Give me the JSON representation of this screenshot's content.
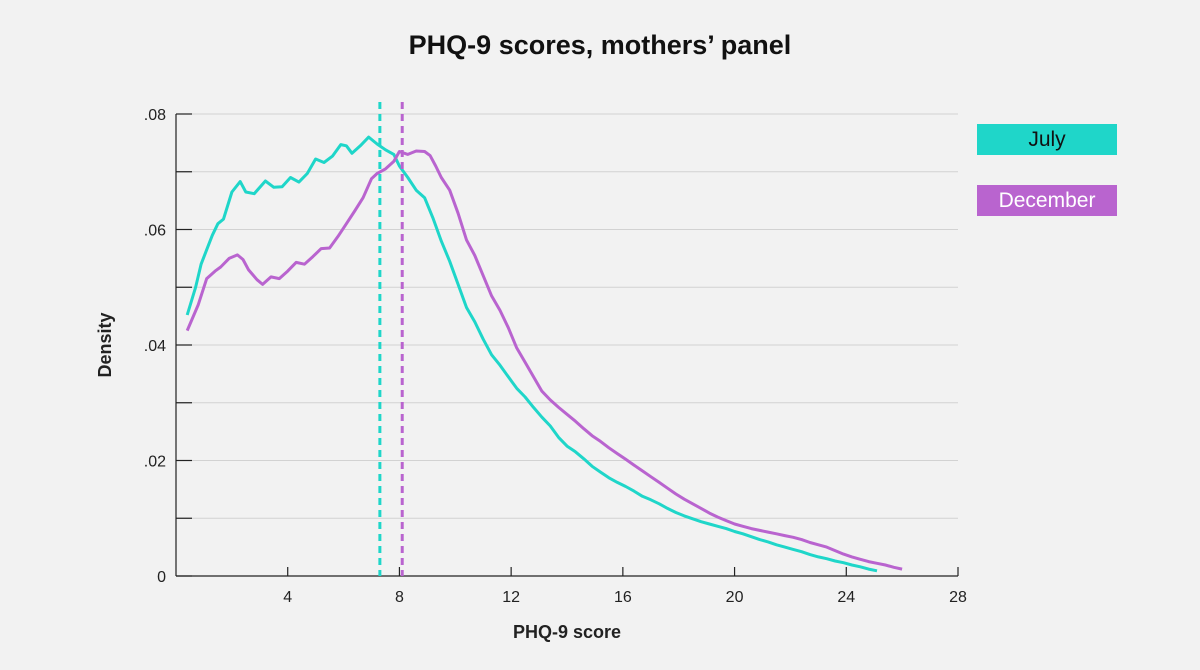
{
  "chart_data": {
    "type": "line",
    "title": "PHQ-9 scores, mothers’ panel",
    "xlabel": "PHQ-9 score",
    "ylabel": "Density",
    "xlim": [
      0,
      28
    ],
    "ylim": [
      0,
      0.08
    ],
    "x_ticks": [
      4,
      8,
      12,
      16,
      20,
      24,
      28
    ],
    "x_tick_labels": [
      "4",
      "8",
      "12",
      "16",
      "20",
      "24",
      "28"
    ],
    "y_ticks": [
      0,
      0.01,
      0.02,
      0.03,
      0.04,
      0.05,
      0.06,
      0.07,
      0.08
    ],
    "y_tick_labels": [
      "0",
      "",
      ".02",
      "",
      ".04",
      "",
      ".06",
      "",
      ".08"
    ],
    "grid": true,
    "legend_position": "right",
    "series": [
      {
        "name": "July",
        "color": "#1fd6c9",
        "mean": 7.3,
        "points": [
          [
            0.4,
            0.0452
          ],
          [
            0.7,
            0.05
          ],
          [
            0.9,
            0.054
          ],
          [
            1.1,
            0.0565
          ],
          [
            1.3,
            0.059
          ],
          [
            1.5,
            0.061
          ],
          [
            1.7,
            0.0618
          ],
          [
            2.0,
            0.0665
          ],
          [
            2.3,
            0.0683
          ],
          [
            2.5,
            0.0665
          ],
          [
            2.8,
            0.0662
          ],
          [
            3.2,
            0.0684
          ],
          [
            3.5,
            0.0673
          ],
          [
            3.8,
            0.0674
          ],
          [
            4.1,
            0.069
          ],
          [
            4.4,
            0.0682
          ],
          [
            4.7,
            0.0697
          ],
          [
            5.0,
            0.0722
          ],
          [
            5.3,
            0.0716
          ],
          [
            5.6,
            0.0727
          ],
          [
            5.9,
            0.0747
          ],
          [
            6.1,
            0.0745
          ],
          [
            6.3,
            0.0732
          ],
          [
            6.6,
            0.0745
          ],
          [
            6.9,
            0.076
          ],
          [
            7.2,
            0.0748
          ],
          [
            7.5,
            0.0738
          ],
          [
            7.8,
            0.073
          ],
          [
            8.0,
            0.071
          ],
          [
            8.3,
            0.069
          ],
          [
            8.6,
            0.0668
          ],
          [
            8.9,
            0.0655
          ],
          [
            9.2,
            0.062
          ],
          [
            9.5,
            0.058
          ],
          [
            9.8,
            0.0545
          ],
          [
            10.1,
            0.0505
          ],
          [
            10.4,
            0.0465
          ],
          [
            10.7,
            0.044
          ],
          [
            11.0,
            0.041
          ],
          [
            11.3,
            0.0383
          ],
          [
            11.6,
            0.0365
          ],
          [
            11.9,
            0.0345
          ],
          [
            12.2,
            0.0325
          ],
          [
            12.5,
            0.031
          ],
          [
            12.8,
            0.0292
          ],
          [
            13.1,
            0.0275
          ],
          [
            13.4,
            0.026
          ],
          [
            13.7,
            0.024
          ],
          [
            14.0,
            0.0225
          ],
          [
            14.3,
            0.0215
          ],
          [
            14.6,
            0.0203
          ],
          [
            14.9,
            0.019
          ],
          [
            15.2,
            0.018
          ],
          [
            15.5,
            0.017
          ],
          [
            15.8,
            0.0162
          ],
          [
            16.1,
            0.0155
          ],
          [
            16.4,
            0.0147
          ],
          [
            16.7,
            0.0138
          ],
          [
            17.0,
            0.0132
          ],
          [
            17.3,
            0.0125
          ],
          [
            17.6,
            0.0117
          ],
          [
            17.9,
            0.011
          ],
          [
            18.2,
            0.0104
          ],
          [
            18.5,
            0.0099
          ],
          [
            18.8,
            0.0094
          ],
          [
            19.1,
            0.009
          ],
          [
            19.4,
            0.0086
          ],
          [
            19.7,
            0.0082
          ],
          [
            20.0,
            0.0077
          ],
          [
            20.3,
            0.0073
          ],
          [
            20.6,
            0.0068
          ],
          [
            20.9,
            0.0063
          ],
          [
            21.2,
            0.0059
          ],
          [
            21.5,
            0.0054
          ],
          [
            21.8,
            0.005
          ],
          [
            22.1,
            0.0046
          ],
          [
            22.4,
            0.0042
          ],
          [
            22.7,
            0.0037
          ],
          [
            23.0,
            0.0033
          ],
          [
            23.3,
            0.003
          ],
          [
            23.6,
            0.0026
          ],
          [
            23.9,
            0.0023
          ],
          [
            24.2,
            0.0019
          ],
          [
            24.5,
            0.0016
          ],
          [
            24.8,
            0.0012
          ],
          [
            25.1,
            0.0009
          ]
        ]
      },
      {
        "name": "December",
        "color": "#b964cf",
        "mean": 8.1,
        "points": [
          [
            0.4,
            0.0425
          ],
          [
            0.8,
            0.047
          ],
          [
            1.1,
            0.0515
          ],
          [
            1.4,
            0.0528
          ],
          [
            1.6,
            0.0535
          ],
          [
            1.9,
            0.055
          ],
          [
            2.2,
            0.0556
          ],
          [
            2.4,
            0.0548
          ],
          [
            2.6,
            0.053
          ],
          [
            2.9,
            0.0513
          ],
          [
            3.1,
            0.0505
          ],
          [
            3.4,
            0.0518
          ],
          [
            3.7,
            0.0515
          ],
          [
            4.0,
            0.0528
          ],
          [
            4.3,
            0.0543
          ],
          [
            4.6,
            0.054
          ],
          [
            4.9,
            0.0553
          ],
          [
            5.2,
            0.0567
          ],
          [
            5.5,
            0.0568
          ],
          [
            5.8,
            0.0588
          ],
          [
            6.1,
            0.061
          ],
          [
            6.4,
            0.0632
          ],
          [
            6.7,
            0.0655
          ],
          [
            7.0,
            0.0688
          ],
          [
            7.2,
            0.0697
          ],
          [
            7.5,
            0.0705
          ],
          [
            7.8,
            0.0718
          ],
          [
            8.0,
            0.0735
          ],
          [
            8.3,
            0.073
          ],
          [
            8.6,
            0.0736
          ],
          [
            8.9,
            0.0735
          ],
          [
            9.1,
            0.0728
          ],
          [
            9.3,
            0.071
          ],
          [
            9.5,
            0.069
          ],
          [
            9.8,
            0.0668
          ],
          [
            10.1,
            0.0628
          ],
          [
            10.4,
            0.0582
          ],
          [
            10.7,
            0.0555
          ],
          [
            11.0,
            0.052
          ],
          [
            11.3,
            0.0485
          ],
          [
            11.6,
            0.046
          ],
          [
            11.9,
            0.043
          ],
          [
            12.2,
            0.0395
          ],
          [
            12.5,
            0.037
          ],
          [
            12.8,
            0.0345
          ],
          [
            13.1,
            0.032
          ],
          [
            13.4,
            0.0305
          ],
          [
            13.7,
            0.0292
          ],
          [
            14.0,
            0.028
          ],
          [
            14.3,
            0.0268
          ],
          [
            14.6,
            0.0255
          ],
          [
            14.9,
            0.0243
          ],
          [
            15.2,
            0.0233
          ],
          [
            15.5,
            0.0222
          ],
          [
            15.8,
            0.0212
          ],
          [
            16.1,
            0.0202
          ],
          [
            16.4,
            0.0192
          ],
          [
            16.7,
            0.0182
          ],
          [
            17.0,
            0.0172
          ],
          [
            17.3,
            0.0162
          ],
          [
            17.6,
            0.0152
          ],
          [
            17.9,
            0.0142
          ],
          [
            18.2,
            0.0133
          ],
          [
            18.5,
            0.0125
          ],
          [
            18.8,
            0.0117
          ],
          [
            19.1,
            0.0109
          ],
          [
            19.4,
            0.0102
          ],
          [
            19.7,
            0.0096
          ],
          [
            20.0,
            0.009
          ],
          [
            20.3,
            0.0086
          ],
          [
            20.6,
            0.0082
          ],
          [
            20.9,
            0.0079
          ],
          [
            21.2,
            0.0076
          ],
          [
            21.5,
            0.0073
          ],
          [
            21.8,
            0.007
          ],
          [
            22.1,
            0.0067
          ],
          [
            22.4,
            0.0063
          ],
          [
            22.7,
            0.0058
          ],
          [
            23.0,
            0.0054
          ],
          [
            23.3,
            0.005
          ],
          [
            23.6,
            0.0044
          ],
          [
            23.9,
            0.0038
          ],
          [
            24.2,
            0.0033
          ],
          [
            24.5,
            0.0029
          ],
          [
            24.8,
            0.0025
          ],
          [
            25.1,
            0.0022
          ],
          [
            25.4,
            0.0019
          ],
          [
            25.7,
            0.0015
          ],
          [
            26.0,
            0.0012
          ]
        ]
      }
    ]
  },
  "legend": {
    "items": [
      {
        "label": "July",
        "color": "#1fd6c9"
      },
      {
        "label": "December",
        "color": "#b964cf"
      }
    ]
  }
}
